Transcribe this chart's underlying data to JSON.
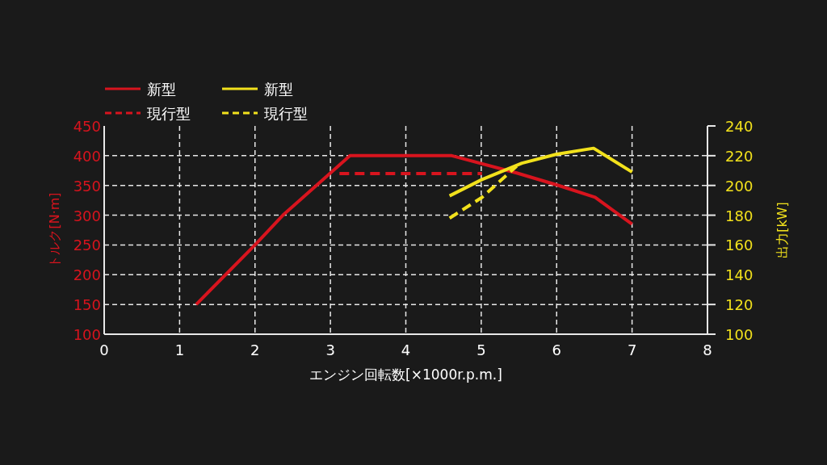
{
  "chart_data": {
    "type": "line",
    "xlabel": "エンジン回転数[×1000r.p.m.]",
    "ylabel": "トルク[N·m]",
    "y2label": "出力[kW]",
    "xlim": [
      0,
      8
    ],
    "xticks": [
      0,
      1,
      2,
      3,
      4,
      5,
      6,
      7,
      8
    ],
    "ylim": [
      100,
      450
    ],
    "yticks": [
      100,
      150,
      200,
      250,
      300,
      350,
      400,
      450
    ],
    "y2lim": [
      100,
      240
    ],
    "y2ticks": [
      100,
      120,
      140,
      160,
      180,
      200,
      220,
      240
    ],
    "grid": true,
    "legend": "top left",
    "marker": "none",
    "series": [
      {
        "name": "新型",
        "color": "#d8141e",
        "line_style": "solid",
        "x": [
          1.22,
          2.0,
          2.37,
          3.26,
          4.61,
          5.47,
          6.0,
          6.51,
          7.0
        ],
        "values": [
          150,
          250,
          300,
          400,
          400,
          371,
          351,
          330,
          285
        ]
      },
      {
        "name": "現行型",
        "color": "#d8141e",
        "line_style": "dashed",
        "x": [
          3.12,
          5.01
        ],
        "values": [
          370,
          370
        ]
      },
      {
        "name": "新型",
        "color": "#f2e11c",
        "line_style": "solid",
        "axis": "y2",
        "x": [
          4.58,
          5.01,
          5.54,
          6.0,
          6.49,
          7.0
        ],
        "values": [
          193,
          204,
          215,
          221,
          225,
          209
        ]
      },
      {
        "name": "現行型",
        "color": "#f2e11c",
        "line_style": "dashed",
        "axis": "y2",
        "x": [
          4.58,
          5.01,
          5.47
        ],
        "values": [
          178,
          192,
          213
        ]
      }
    ]
  }
}
